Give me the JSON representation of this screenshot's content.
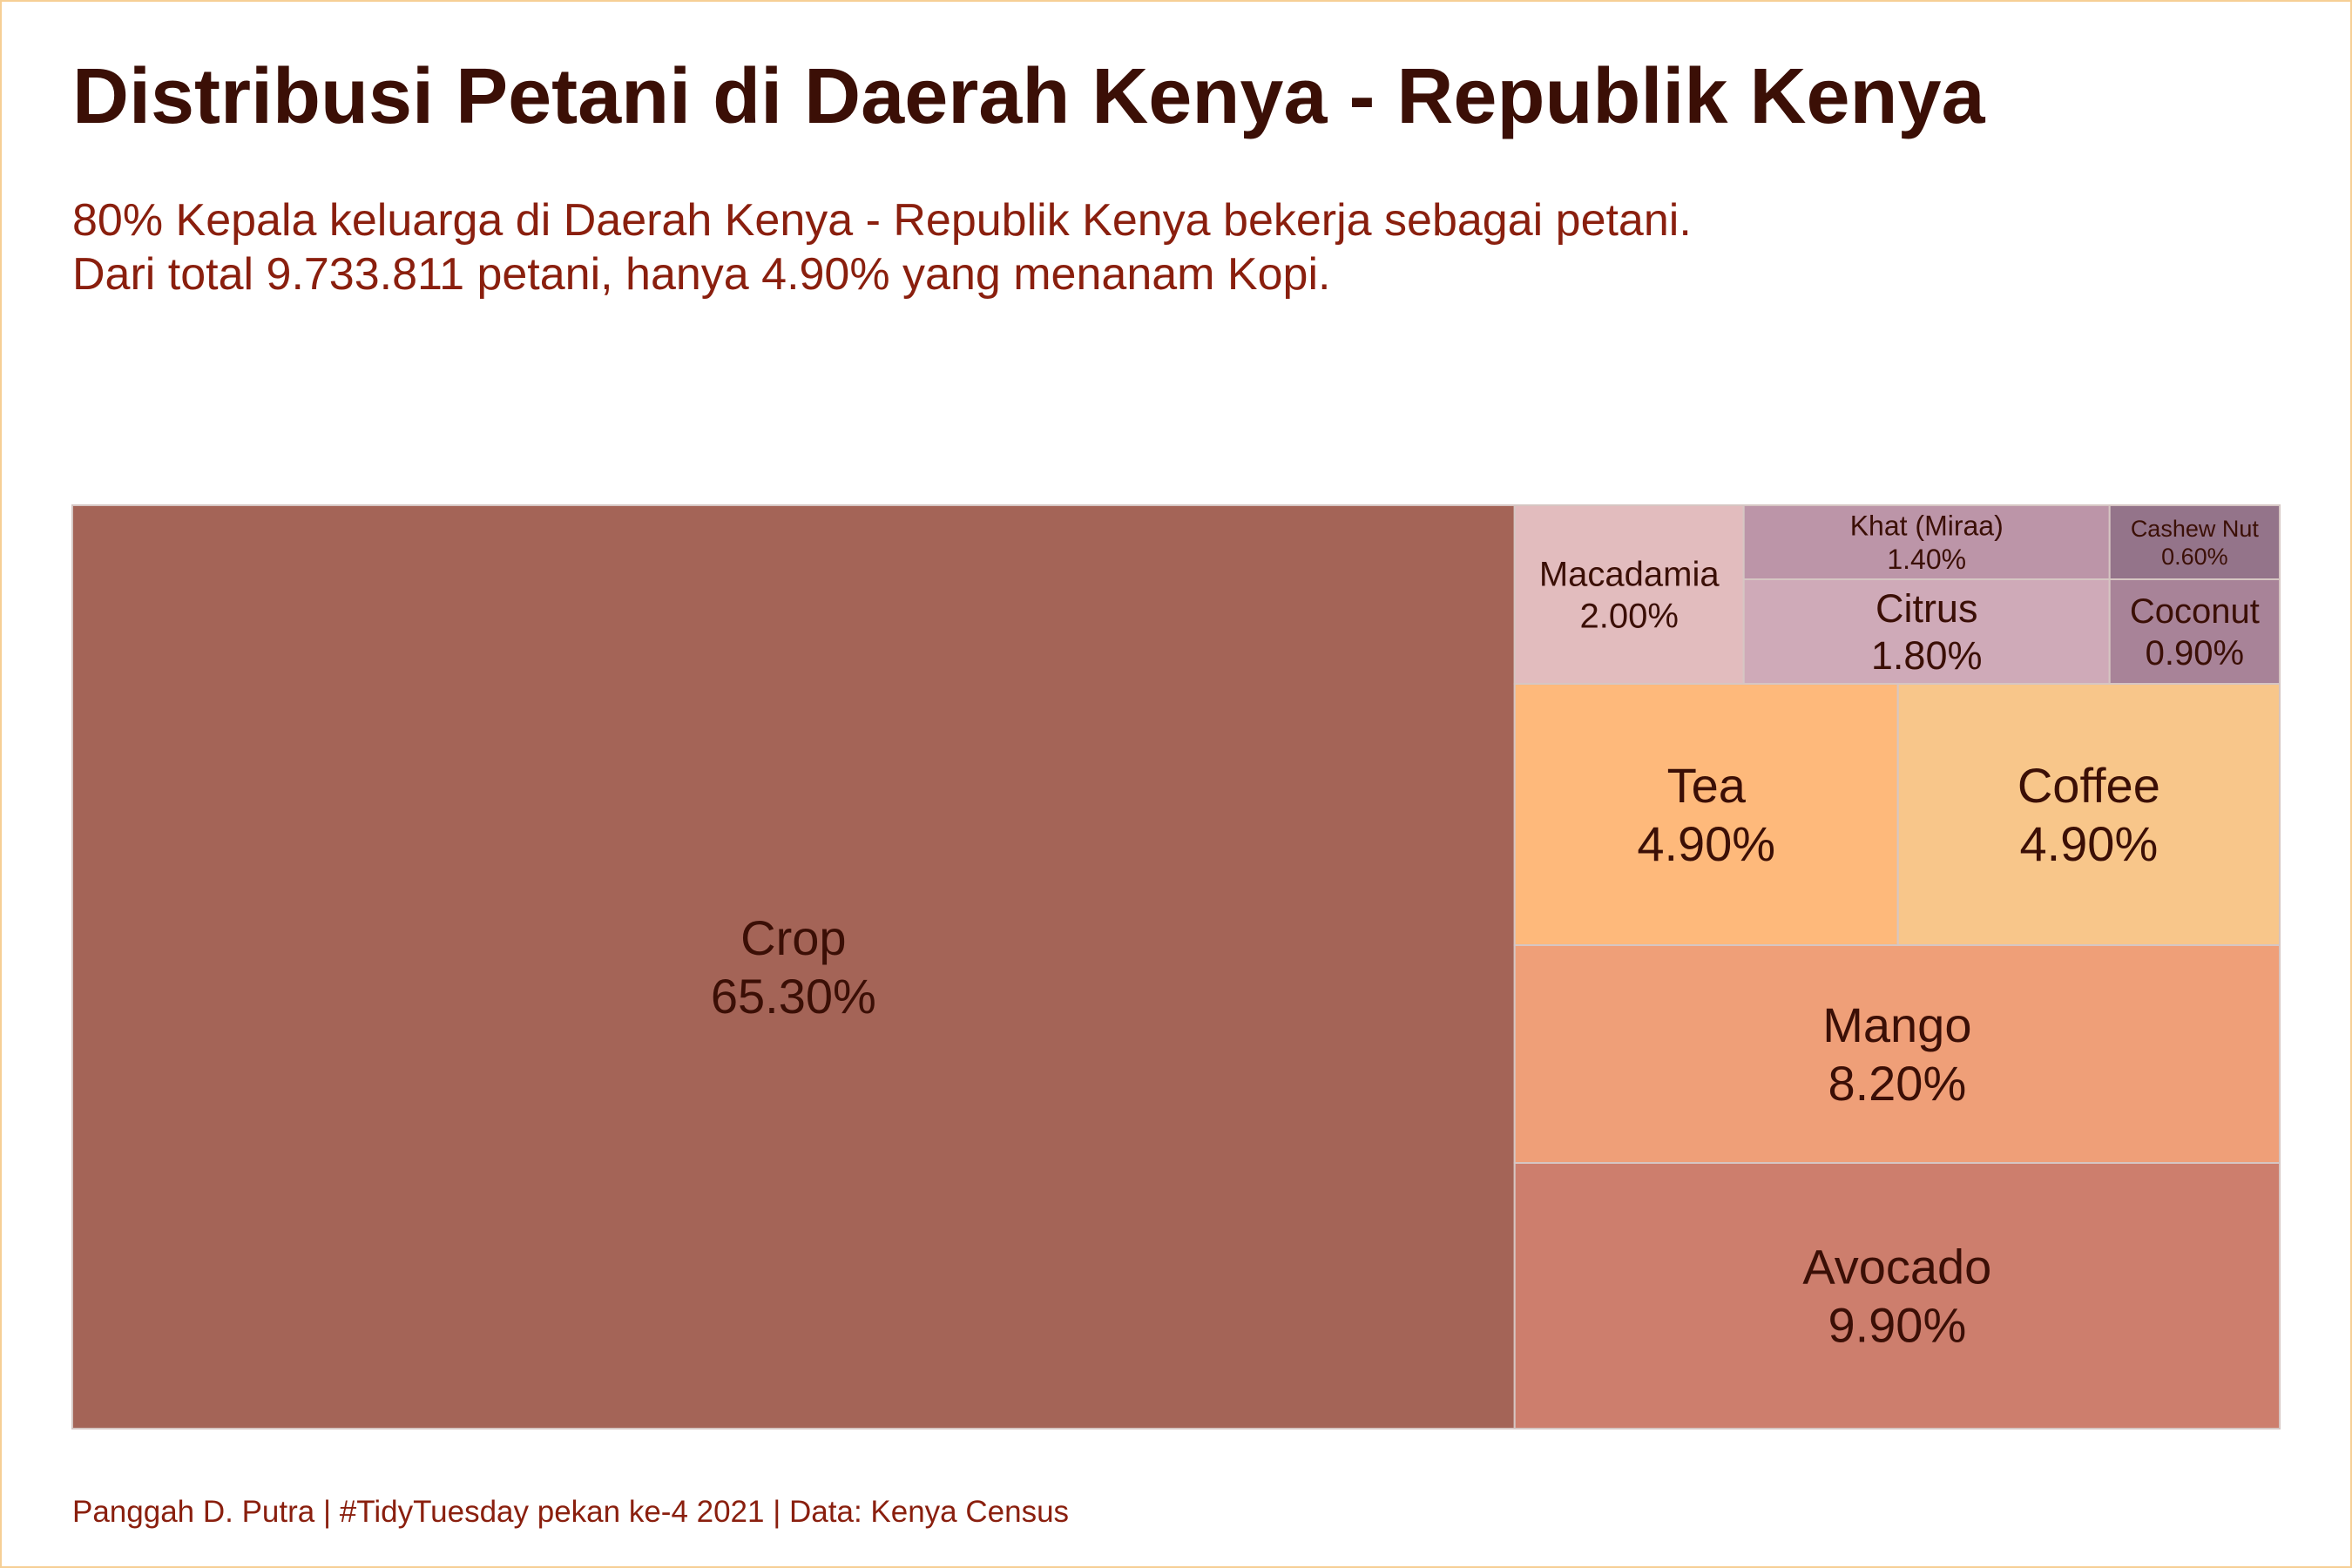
{
  "title": "Distribusi Petani di Daerah Kenya - Republik Kenya",
  "subtitle": [
    "80% Kepala keluarga di Daerah Kenya - Republik Kenya bekerja sebagai petani.",
    "Dari total 9.733.811 petani, hanya 4.90% yang menanam Kopi."
  ],
  "caption": "Panggah D. Putra | #TidyTuesday pekan ke-4 2021 | Data: Kenya Census",
  "chart_data": {
    "type": "treemap",
    "unit": "%",
    "items": [
      {
        "name": "Crop",
        "value": 65.3,
        "label": "65.30%",
        "color": "#a46457"
      },
      {
        "name": "Avocado",
        "value": 9.9,
        "label": "9.90%",
        "color": "#cd7e6d"
      },
      {
        "name": "Mango",
        "value": 8.2,
        "label": "8.20%",
        "color": "#ef9f78"
      },
      {
        "name": "Tea",
        "value": 4.9,
        "label": "4.90%",
        "color": "#feb97b"
      },
      {
        "name": "Coffee",
        "value": 4.9,
        "label": "4.90%",
        "color": "#f8c68a"
      },
      {
        "name": "Macadamia",
        "value": 2.0,
        "label": "2.00%",
        "color": "#e2bcbe"
      },
      {
        "name": "Citrus",
        "value": 1.8,
        "label": "1.80%",
        "color": "#cfaab8"
      },
      {
        "name": "Khat (Miraa)",
        "value": 1.4,
        "label": "1.40%",
        "color": "#bc95a8"
      },
      {
        "name": "Coconut",
        "value": 0.9,
        "label": "0.90%",
        "color": "#a88398"
      },
      {
        "name": "Cashew Nut",
        "value": 0.6,
        "label": "0.60%",
        "color": "#94748a"
      }
    ],
    "label_color": "#3b0f06",
    "border_color": "#d6c6c3"
  }
}
